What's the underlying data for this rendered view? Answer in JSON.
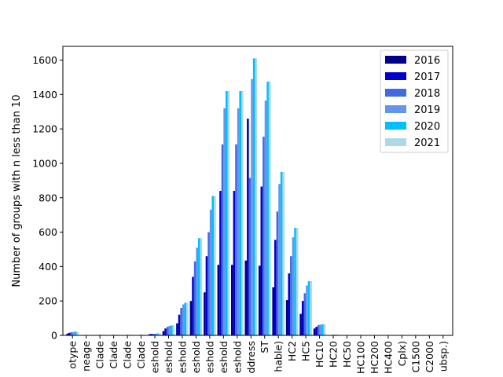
{
  "chart_data": {
    "type": "bar",
    "title": "",
    "xlabel": "",
    "ylabel": "Number of groups with n less than 10",
    "ylim": [
      0,
      1680
    ],
    "yticks": [
      0,
      200,
      400,
      600,
      800,
      1000,
      1200,
      1400,
      1600
    ],
    "grid": false,
    "legend_position": "top-right",
    "categories": [
      "otype",
      "neage",
      "Clade",
      "Clade",
      "Clade",
      "Clade",
      "eshold",
      "eshold",
      "eshold",
      "eshold",
      "eshold",
      "eshold",
      "eshold",
      "ddress",
      "ST",
      "hable)",
      "HC2",
      "HC5",
      "HC10",
      "HC20",
      "HC50",
      "HC100",
      "HC200",
      "HC400",
      "Cplx)",
      "C1500",
      "C2000",
      "ubsp.)"
    ],
    "series": [
      {
        "name": "2016",
        "color": "#00008b",
        "values": [
          10,
          0,
          0,
          0,
          0,
          0,
          8,
          25,
          70,
          200,
          250,
          410,
          410,
          435,
          405,
          280,
          205,
          125,
          40,
          0,
          0,
          0,
          0,
          0,
          0,
          0,
          0,
          0
        ]
      },
      {
        "name": "2017",
        "color": "#0000cd",
        "values": [
          15,
          0,
          2,
          2,
          2,
          2,
          8,
          40,
          120,
          340,
          460,
          840,
          840,
          1260,
          865,
          555,
          360,
          200,
          50,
          2,
          0,
          0,
          0,
          0,
          0,
          0,
          0,
          0
        ]
      },
      {
        "name": "2018",
        "color": "#4169e1",
        "values": [
          18,
          0,
          3,
          3,
          3,
          3,
          9,
          50,
          160,
          430,
          600,
          1110,
          1110,
          915,
          1155,
          720,
          460,
          245,
          60,
          3,
          0,
          0,
          0,
          0,
          0,
          0,
          0,
          0
        ]
      },
      {
        "name": "2019",
        "color": "#6495ed",
        "values": [
          20,
          0,
          3,
          3,
          3,
          3,
          10,
          55,
          180,
          510,
          730,
          1320,
          1320,
          1490,
          1365,
          880,
          570,
          290,
          62,
          4,
          0,
          0,
          0,
          0,
          0,
          0,
          0,
          0
        ]
      },
      {
        "name": "2020",
        "color": "#00bfff",
        "values": [
          22,
          0,
          3,
          3,
          3,
          3,
          11,
          58,
          190,
          565,
          810,
          1420,
          1420,
          1610,
          1475,
          950,
          625,
          315,
          65,
          4,
          0,
          0,
          0,
          0,
          0,
          0,
          0,
          0
        ]
      },
      {
        "name": "2021",
        "color": "#add8e6",
        "values": [
          22,
          0,
          3,
          3,
          3,
          3,
          11,
          58,
          190,
          565,
          810,
          1420,
          1420,
          1610,
          1475,
          950,
          625,
          315,
          65,
          4,
          0,
          0,
          0,
          0,
          0,
          0,
          0,
          0
        ]
      }
    ]
  }
}
